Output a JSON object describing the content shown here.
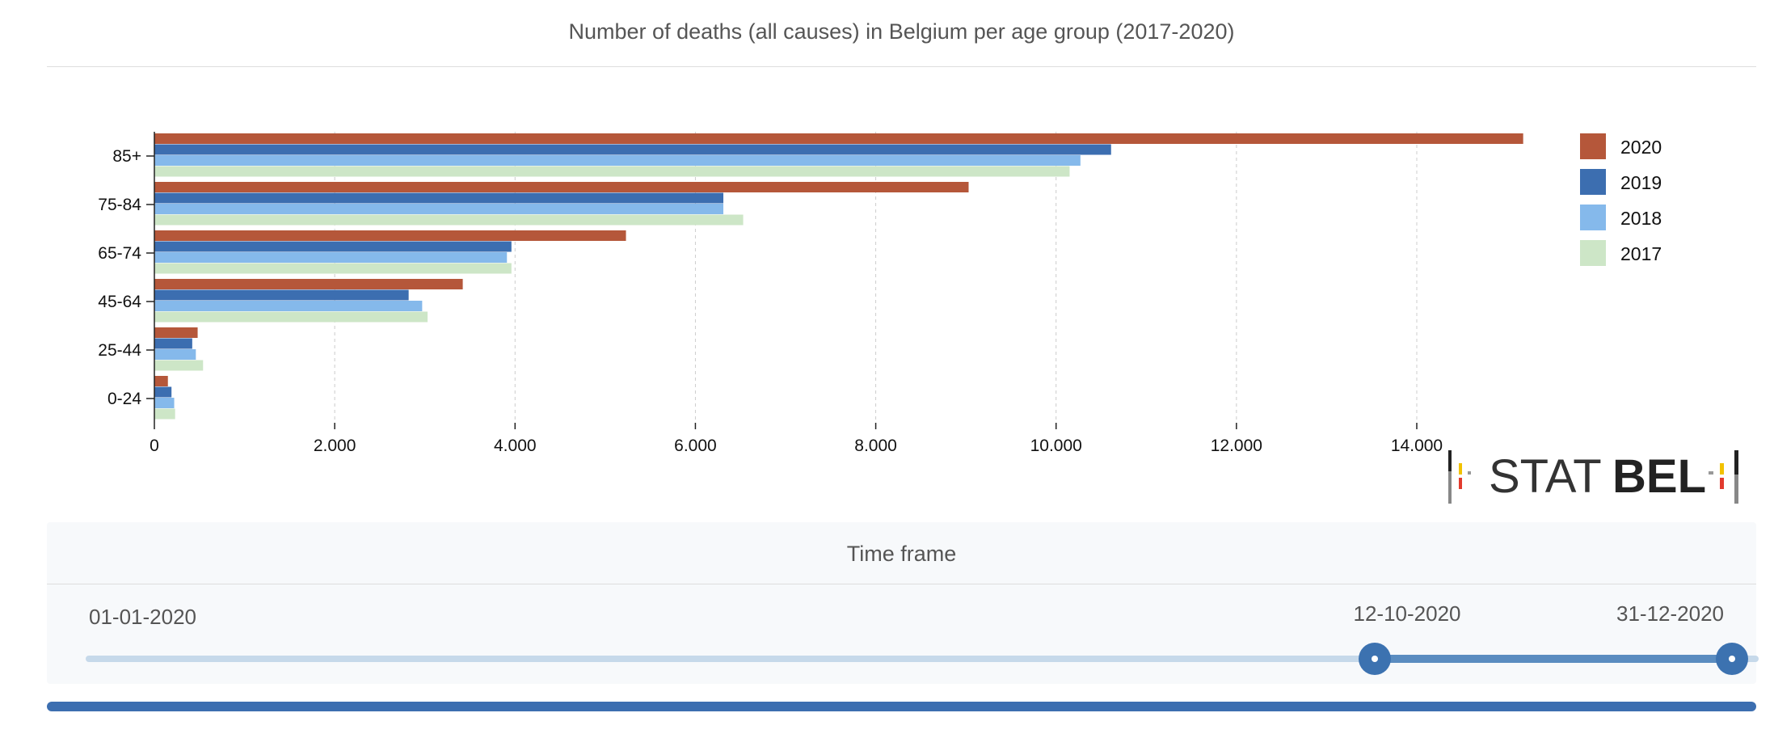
{
  "chart_data": {
    "type": "bar",
    "orientation": "horizontal",
    "title": "Number of deaths (all causes) in Belgium per age group (2017-2020)",
    "categories": [
      "85+",
      "75-84",
      "65-74",
      "45-64",
      "25-44",
      "0-24"
    ],
    "series": [
      {
        "name": "2020",
        "color": "#b5573a",
        "values": [
          15180,
          9030,
          5230,
          3420,
          480,
          150
        ]
      },
      {
        "name": "2019",
        "color": "#3c6eb0",
        "values": [
          10610,
          6310,
          3960,
          2820,
          420,
          190
        ]
      },
      {
        "name": "2018",
        "color": "#85b9eb",
        "values": [
          10270,
          6310,
          3910,
          2970,
          460,
          220
        ]
      },
      {
        "name": "2017",
        "color": "#cde6c7",
        "values": [
          10150,
          6530,
          3960,
          3030,
          540,
          230
        ]
      }
    ],
    "xlim": [
      0,
      15500
    ],
    "xticks": [
      0,
      2000,
      4000,
      6000,
      8000,
      10000,
      12000,
      14000
    ],
    "xtick_labels": [
      "0",
      "2.000",
      "4.000",
      "6.000",
      "8.000",
      "10.000",
      "12.000",
      "14.000"
    ],
    "grid": "vertical-dashed",
    "legend": "right"
  },
  "logo": {
    "text_light": "STAT",
    "text_bold": "BEL",
    "name": "statbel-logo"
  },
  "timeframe": {
    "title": "Time frame",
    "start_label": "01-01-2020",
    "selected_from": "12-10-2020",
    "selected_to": "31-12-2020"
  }
}
